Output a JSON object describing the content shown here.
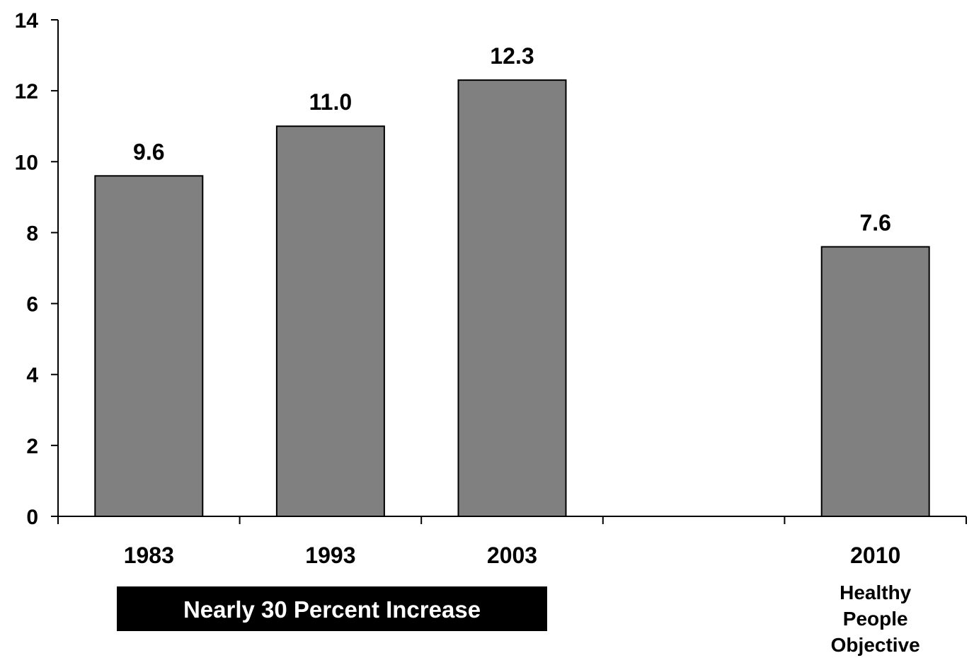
{
  "chart_data": {
    "type": "bar",
    "categories": [
      "1983",
      "1993",
      "2003",
      "",
      "2010"
    ],
    "values": [
      9.6,
      11.0,
      12.3,
      null,
      7.6
    ],
    "data_labels": [
      "9.6",
      "11.0",
      "12.3",
      "",
      "7.6"
    ],
    "category_notes": [
      "",
      "",
      "",
      "",
      "Healthy\nPeople\nObjective"
    ],
    "ylim": [
      0,
      14
    ],
    "yticks": [
      0,
      2,
      4,
      6,
      8,
      10,
      12,
      14
    ],
    "grid": false,
    "bar_color": "#808080",
    "annotation": "Nearly 30 Percent Increase"
  }
}
